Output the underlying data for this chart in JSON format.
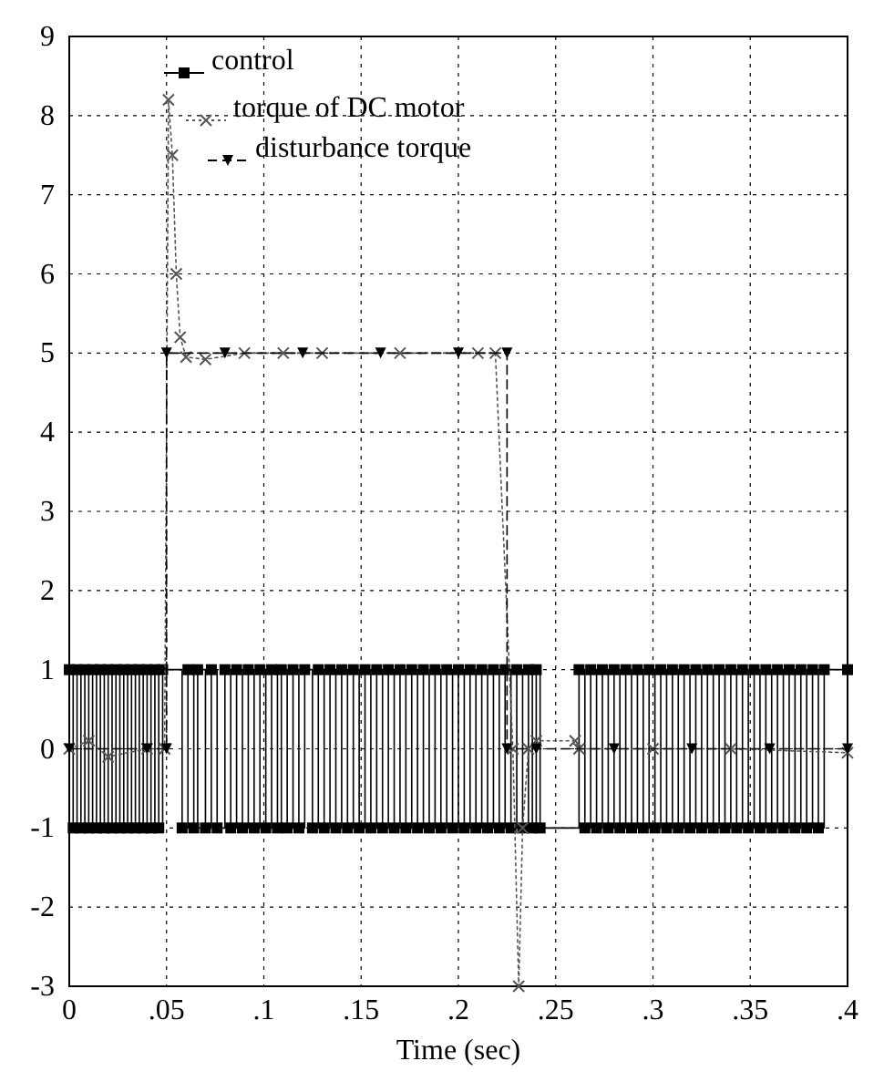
{
  "chart_data": {
    "type": "line",
    "xlabel": "Time (sec)",
    "xlim": [
      0,
      0.4
    ],
    "ylim": [
      -3,
      9
    ],
    "xticks": [
      0,
      {
        "value": 0.05,
        "label": ".05"
      },
      {
        "value": 0.1,
        "label": ".1"
      },
      {
        "value": 0.15,
        "label": ".15"
      },
      {
        "value": 0.2,
        "label": ".2"
      },
      {
        "value": 0.25,
        "label": ".25"
      },
      {
        "value": 0.3,
        "label": ".3"
      },
      {
        "value": 0.35,
        "label": ".35"
      },
      {
        "value": 0.4,
        "label": ".4"
      }
    ],
    "yticks": [
      -3,
      -2,
      -1,
      0,
      1,
      2,
      3,
      4,
      5,
      6,
      7,
      8,
      9
    ],
    "grid": true,
    "legend": "top left",
    "series": [
      {
        "name": "control",
        "type": "step",
        "color": "#000000",
        "marker": "square",
        "line_style": "solid",
        "x": [
          0,
          0.002,
          0.004,
          0.006,
          0.008,
          0.01,
          0.012,
          0.014,
          0.016,
          0.018,
          0.02,
          0.022,
          0.024,
          0.026,
          0.028,
          0.03,
          0.032,
          0.034,
          0.036,
          0.038,
          0.04,
          0.042,
          0.044,
          0.046,
          0.048,
          0.058,
          0.061,
          0.064,
          0.066,
          0.07,
          0.073,
          0.076,
          0.08,
          0.083,
          0.086,
          0.089,
          0.092,
          0.095,
          0.098,
          0.101,
          0.104,
          0.107,
          0.109,
          0.112,
          0.115,
          0.118,
          0.121,
          0.125,
          0.128,
          0.131,
          0.134,
          0.137,
          0.14,
          0.143,
          0.146,
          0.149,
          0.152,
          0.155,
          0.158,
          0.161,
          0.164,
          0.167,
          0.17,
          0.173,
          0.176,
          0.179,
          0.182,
          0.185,
          0.188,
          0.191,
          0.194,
          0.197,
          0.2,
          0.203,
          0.206,
          0.209,
          0.212,
          0.215,
          0.218,
          0.221,
          0.224,
          0.227,
          0.23,
          0.233,
          0.236,
          0.238,
          0.24,
          0.242,
          0.262,
          0.265,
          0.268,
          0.271,
          0.274,
          0.277,
          0.28,
          0.283,
          0.286,
          0.289,
          0.292,
          0.295,
          0.298,
          0.301,
          0.304,
          0.307,
          0.31,
          0.313,
          0.316,
          0.319,
          0.322,
          0.325,
          0.328,
          0.331,
          0.334,
          0.337,
          0.34,
          0.343,
          0.346,
          0.349,
          0.352,
          0.355,
          0.358,
          0.361,
          0.364,
          0.367,
          0.37,
          0.373,
          0.376,
          0.379,
          0.382,
          0.385,
          0.388,
          0.4
        ],
        "values": [
          1,
          -1,
          1,
          -1,
          1,
          -1,
          1,
          -1,
          1,
          -1,
          1,
          -1,
          1,
          -1,
          1,
          -1,
          1,
          -1,
          1,
          -1,
          1,
          -1,
          1,
          -1,
          1,
          -1,
          1,
          -1,
          1,
          -1,
          1,
          -1,
          1,
          -1,
          1,
          -1,
          1,
          -1,
          1,
          -1,
          1,
          -1,
          1,
          -1,
          1,
          -1,
          1,
          -1,
          1,
          -1,
          1,
          -1,
          1,
          -1,
          1,
          -1,
          1,
          -1,
          1,
          -1,
          1,
          -1,
          1,
          -1,
          1,
          -1,
          1,
          -1,
          1,
          -1,
          1,
          -1,
          1,
          -1,
          1,
          -1,
          1,
          -1,
          1,
          -1,
          1,
          -1,
          1,
          -1,
          1,
          -1,
          1,
          -1,
          1,
          -1,
          1,
          -1,
          1,
          -1,
          1,
          -1,
          1,
          -1,
          1,
          -1,
          1,
          -1,
          1,
          -1,
          1,
          -1,
          1,
          -1,
          1,
          -1,
          1,
          -1,
          1,
          -1,
          1,
          -1,
          1,
          -1,
          1,
          -1,
          1,
          -1,
          1,
          -1,
          1,
          -1,
          1,
          -1,
          1,
          -1,
          1,
          1
        ]
      },
      {
        "name": "torque of DC motor",
        "color": "#555555",
        "marker": "cross",
        "line_style": "dotted",
        "x": [
          0,
          0.01,
          0.02,
          0.04,
          0.049,
          0.051,
          0.053,
          0.055,
          0.057,
          0.06,
          0.07,
          0.09,
          0.11,
          0.13,
          0.17,
          0.21,
          0.219,
          0.228,
          0.231,
          0.233,
          0.236,
          0.24,
          0.26,
          0.262,
          0.3,
          0.34,
          0.4
        ],
        "values": [
          0,
          0.1,
          -0.1,
          0,
          0,
          8.2,
          7.5,
          6,
          5.2,
          4.95,
          4.92,
          5,
          5,
          5,
          5,
          5,
          5,
          0,
          -3,
          -1,
          0,
          0.1,
          0.1,
          0,
          0,
          0,
          -0.05
        ]
      },
      {
        "name": "disturbance torque",
        "color": "#000000",
        "marker": "triangle",
        "line_style": "dashed",
        "x": [
          0,
          0.04,
          0.05,
          0.05,
          0.08,
          0.12,
          0.16,
          0.2,
          0.225,
          0.225,
          0.24,
          0.28,
          0.32,
          0.36,
          0.4
        ],
        "values": [
          0,
          0,
          0,
          5,
          5,
          5,
          5,
          5,
          5,
          0,
          0,
          0,
          0,
          0,
          0
        ]
      }
    ]
  }
}
